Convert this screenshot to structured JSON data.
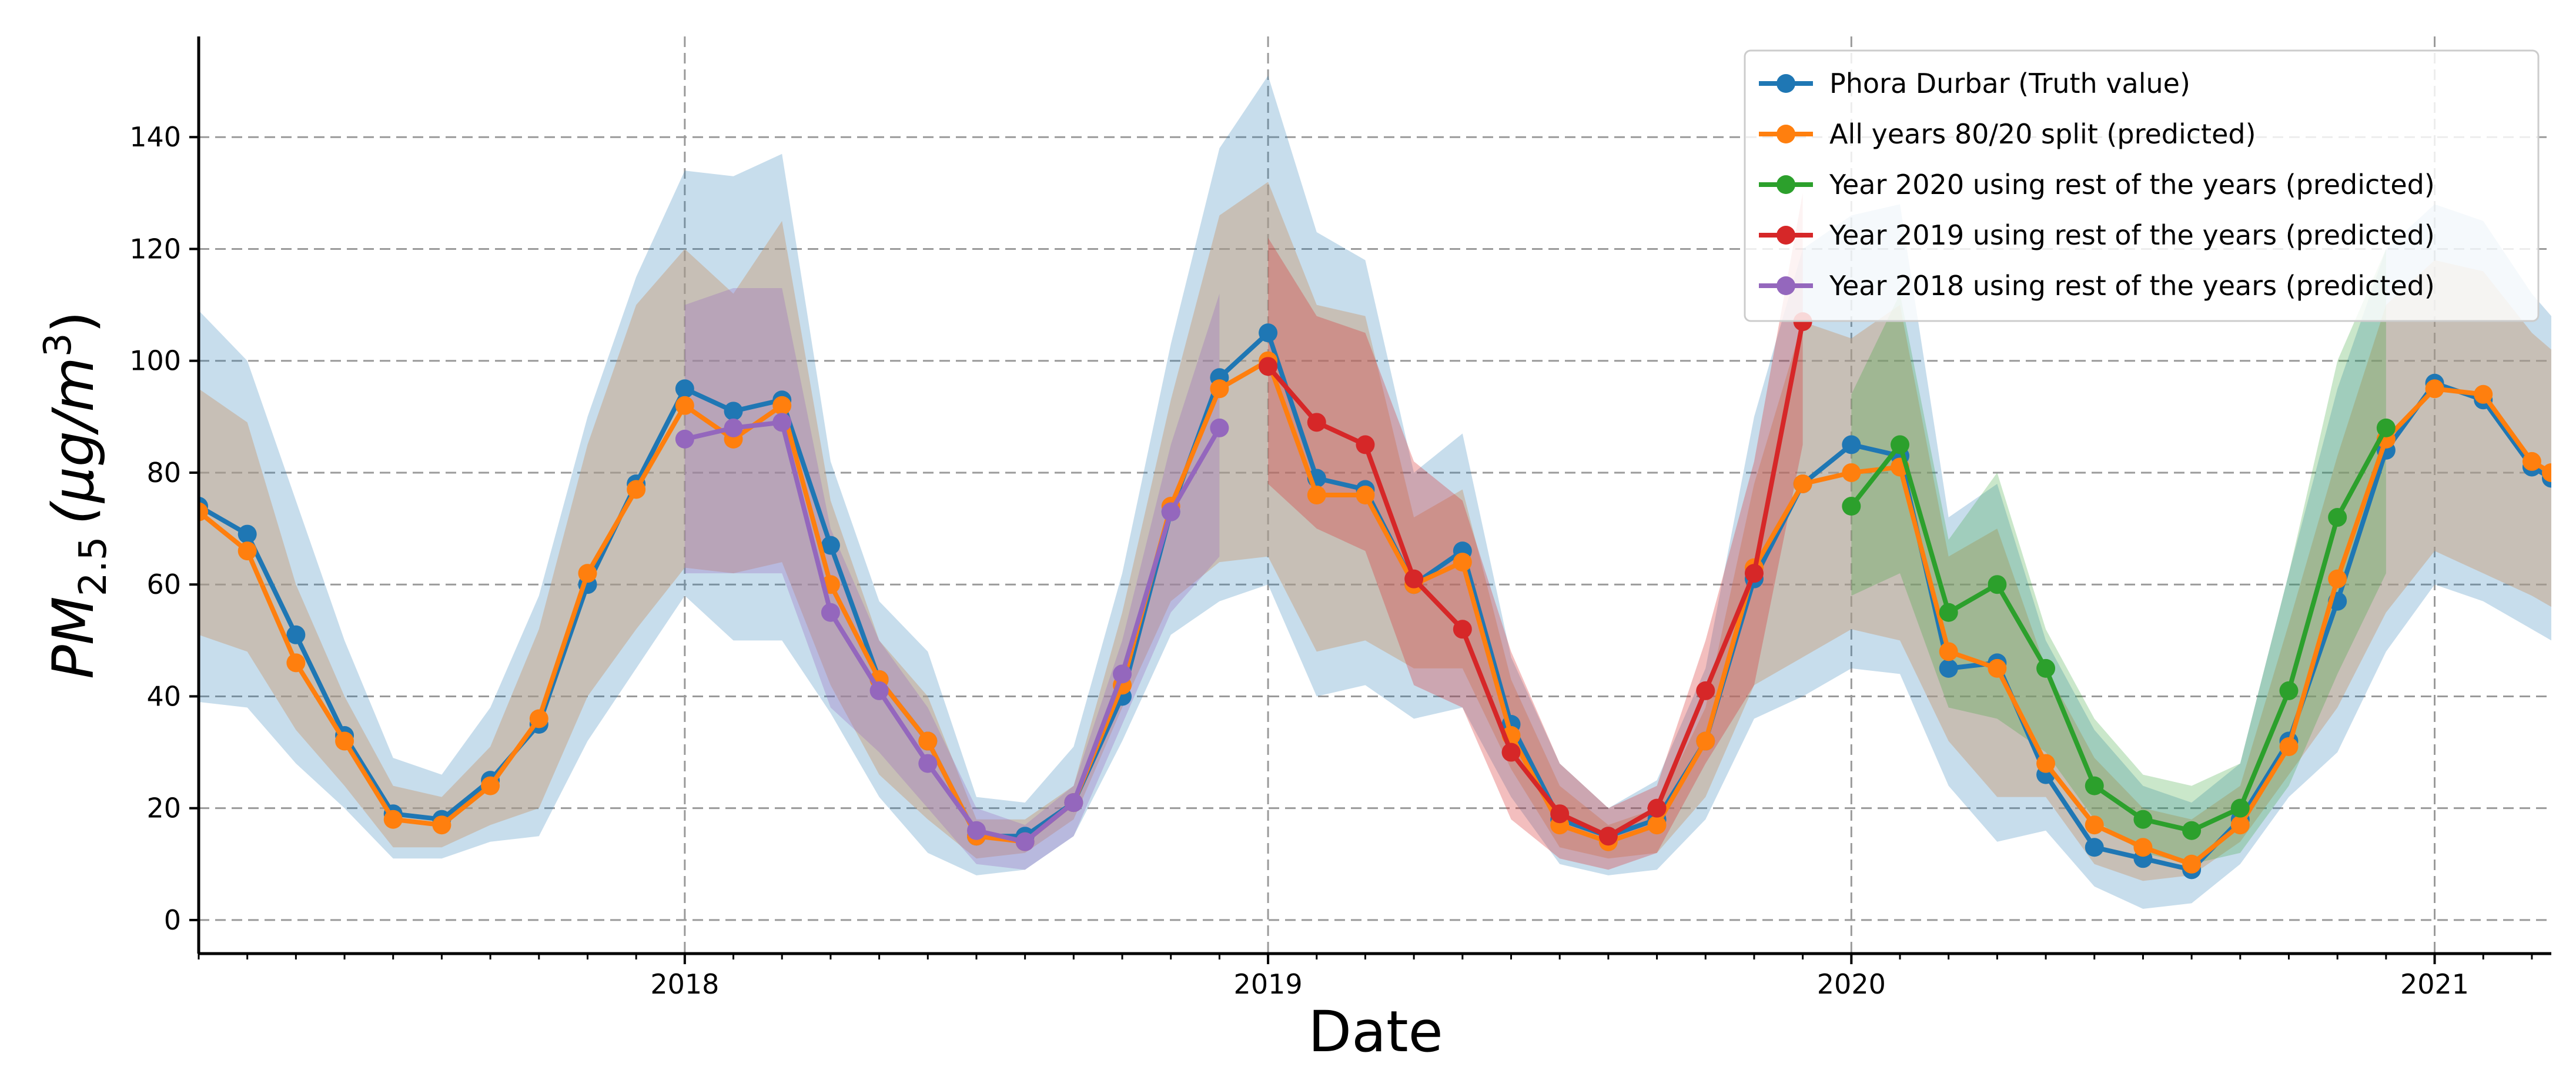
{
  "chart_data": {
    "type": "line",
    "xlabel": "Date",
    "ylabel_main": "PM",
    "ylabel_sub": "2.5",
    "ylabel_unit": "(μg/m",
    "ylabel_sup": "3",
    "ylabel_close": ")",
    "ylim": [
      -6,
      158
    ],
    "xlim": [
      0,
      48.4
    ],
    "yticks": [
      0,
      20,
      40,
      60,
      80,
      100,
      120,
      140
    ],
    "xticks": [
      {
        "label": "2018",
        "x": 10
      },
      {
        "label": "2019",
        "x": 22
      },
      {
        "label": "2020",
        "x": 34
      },
      {
        "label": "2021",
        "x": 46
      }
    ],
    "minor_x_step": 1,
    "grid": true,
    "legend_position": "top-right",
    "bands": [
      {
        "series": "Phora Durbar (Truth value)",
        "color": "#1f77b4",
        "opacity": 0.25,
        "x": [
          0,
          1,
          2,
          3,
          4,
          5,
          6,
          7,
          8,
          9,
          10,
          11,
          12,
          13,
          14,
          15,
          16,
          17,
          18,
          19,
          20,
          21,
          22,
          23,
          24,
          25,
          26,
          27,
          28,
          29,
          30,
          31,
          32,
          33,
          34,
          35,
          36,
          37,
          38,
          39,
          40,
          41,
          42,
          43,
          44,
          45,
          46,
          47,
          48,
          48.4
        ],
        "upper": [
          109,
          100,
          75,
          50,
          29,
          26,
          38,
          58,
          90,
          115,
          134,
          133,
          137,
          82,
          57,
          48,
          22,
          21,
          31,
          62,
          103,
          138,
          151,
          123,
          118,
          80,
          87,
          47,
          28,
          20,
          25,
          45,
          90,
          120,
          126,
          128,
          72,
          78,
          50,
          34,
          24,
          21,
          28,
          62,
          95,
          120,
          128,
          125,
          112,
          108
        ],
        "lower": [
          39,
          38,
          28,
          20,
          11,
          11,
          14,
          15,
          32,
          45,
          58,
          50,
          50,
          37,
          22,
          12,
          8,
          9,
          15,
          32,
          51,
          57,
          60,
          40,
          42,
          36,
          38,
          22,
          10,
          8,
          9,
          18,
          36,
          40,
          45,
          44,
          24,
          14,
          16,
          6,
          2,
          3,
          10,
          22,
          30,
          48,
          60,
          57,
          52,
          50
        ]
      },
      {
        "series": "All years 80/20 split (predicted)",
        "color": "#c8a27f",
        "opacity": 0.5,
        "x": [
          0,
          1,
          2,
          3,
          4,
          5,
          6,
          7,
          8,
          9,
          10,
          11,
          12,
          13,
          14,
          15,
          16,
          17,
          18,
          19,
          20,
          21,
          22,
          23,
          24,
          25,
          26,
          27,
          28,
          29,
          30,
          31,
          32,
          33,
          34,
          35,
          36,
          37,
          38,
          39,
          40,
          41,
          42,
          43,
          44,
          45,
          46,
          47,
          48,
          48.4
        ],
        "upper": [
          95,
          89,
          60,
          40,
          24,
          22,
          31,
          52,
          85,
          110,
          120,
          112,
          125,
          75,
          50,
          40,
          18,
          18,
          24,
          55,
          93,
          126,
          132,
          110,
          108,
          72,
          77,
          43,
          24,
          17,
          20,
          38,
          78,
          107,
          104,
          110,
          65,
          70,
          45,
          29,
          20,
          18,
          24,
          53,
          83,
          110,
          118,
          116,
          105,
          102
        ],
        "lower": [
          51,
          48,
          34,
          24,
          13,
          13,
          17,
          20,
          40,
          52,
          63,
          62,
          64,
          42,
          26,
          18,
          11,
          12,
          18,
          38,
          57,
          64,
          65,
          48,
          50,
          45,
          45,
          27,
          13,
          11,
          12,
          22,
          42,
          47,
          52,
          50,
          32,
          22,
          22,
          10,
          7,
          8,
          14,
          26,
          38,
          55,
          66,
          62,
          58,
          56
        ]
      },
      {
        "series": "Year 2020 using rest of the years (predicted)",
        "color": "#2ca02c",
        "opacity": 0.25,
        "x": [
          34,
          35,
          36,
          37,
          38,
          39,
          40,
          41,
          42,
          43,
          44,
          45
        ],
        "upper": [
          94,
          112,
          68,
          80,
          52,
          36,
          26,
          24,
          28,
          62,
          100,
          120
        ],
        "lower": [
          58,
          62,
          38,
          36,
          30,
          18,
          12,
          10,
          12,
          24,
          44,
          62
        ]
      },
      {
        "series": "Year 2019 using rest of the years (predicted)",
        "color": "#d62728",
        "opacity": 0.3,
        "x": [
          22,
          23,
          24,
          25,
          26,
          27,
          28,
          29,
          30,
          31,
          32,
          33
        ],
        "upper": [
          122,
          108,
          105,
          82,
          75,
          48,
          28,
          20,
          24,
          50,
          82,
          130
        ],
        "lower": [
          78,
          70,
          66,
          42,
          38,
          18,
          11,
          9,
          12,
          28,
          42,
          85
        ]
      },
      {
        "series": "Year 2018 using rest of the years (predicted)",
        "color": "#9467bd",
        "opacity": 0.3,
        "x": [
          10,
          11,
          12,
          13,
          14,
          15,
          16,
          17,
          18,
          19,
          20,
          21
        ],
        "upper": [
          110,
          113,
          113,
          70,
          50,
          38,
          20,
          17,
          24,
          50,
          85,
          112
        ],
        "lower": [
          62,
          62,
          62,
          38,
          30,
          20,
          10,
          9,
          15,
          35,
          55,
          65
        ]
      }
    ],
    "series": [
      {
        "name": "Phora Durbar (Truth value)",
        "color": "#1f77b4",
        "x": [
          0,
          1,
          2,
          3,
          4,
          5,
          6,
          7,
          8,
          9,
          10,
          11,
          12,
          13,
          14,
          15,
          16,
          17,
          18,
          19,
          20,
          21,
          22,
          23,
          24,
          25,
          26,
          27,
          28,
          29,
          30,
          31,
          32,
          33,
          34,
          35,
          36,
          37,
          38,
          39,
          40,
          41,
          42,
          43,
          44,
          45,
          46,
          47,
          48,
          48.4
        ],
        "y": [
          74,
          69,
          51,
          33,
          19,
          18,
          25,
          35,
          60,
          78,
          95,
          91,
          93,
          67,
          43,
          32,
          15,
          15,
          21,
          40,
          73,
          97,
          105,
          79,
          77,
          60,
          66,
          35,
          18,
          15,
          18,
          32,
          61,
          78,
          85,
          83,
          45,
          46,
          26,
          13,
          11,
          9,
          18,
          32,
          57,
          84,
          96,
          93,
          81,
          79
        ]
      },
      {
        "name": "All years 80/20 split (predicted)",
        "color": "#ff7f0e",
        "x": [
          0,
          1,
          2,
          3,
          4,
          5,
          6,
          7,
          8,
          9,
          10,
          11,
          12,
          13,
          14,
          15,
          16,
          17,
          18,
          19,
          20,
          21,
          22,
          23,
          24,
          25,
          26,
          27,
          28,
          29,
          30,
          31,
          32,
          33,
          34,
          35,
          36,
          37,
          38,
          39,
          40,
          41,
          42,
          43,
          44,
          45,
          46,
          47,
          48,
          48.4
        ],
        "y": [
          73,
          66,
          46,
          32,
          18,
          17,
          24,
          36,
          62,
          77,
          92,
          86,
          92,
          60,
          43,
          32,
          15,
          14,
          21,
          42,
          74,
          95,
          100,
          76,
          76,
          60,
          64,
          33,
          17,
          14,
          17,
          32,
          63,
          78,
          80,
          81,
          48,
          45,
          28,
          17,
          13,
          10,
          17,
          31,
          61,
          86,
          95,
          94,
          82,
          80
        ]
      },
      {
        "name": "Year 2020 using rest of the years (predicted)",
        "color": "#2ca02c",
        "x": [
          34,
          35,
          36,
          37,
          38,
          39,
          40,
          41,
          42,
          43,
          44,
          45
        ],
        "y": [
          74,
          85,
          55,
          60,
          45,
          24,
          18,
          16,
          20,
          41,
          72,
          88
        ]
      },
      {
        "name": "Year 2019 using rest of the years (predicted)",
        "color": "#d62728",
        "x": [
          22,
          23,
          24,
          25,
          26,
          27,
          28,
          29,
          30,
          31,
          32,
          33
        ],
        "y": [
          99,
          89,
          85,
          61,
          52,
          30,
          19,
          15,
          20,
          41,
          62,
          107
        ]
      },
      {
        "name": "Year 2018 using rest of the years (predicted)",
        "color": "#9467bd",
        "x": [
          10,
          11,
          12,
          13,
          14,
          15,
          16,
          17,
          18,
          19,
          20,
          21
        ],
        "y": [
          86,
          88,
          89,
          55,
          41,
          28,
          16,
          14,
          21,
          44,
          73,
          88
        ]
      }
    ],
    "legend": [
      {
        "label": "Phora Durbar (Truth value)",
        "color": "#1f77b4"
      },
      {
        "label": "All years 80/20 split (predicted)",
        "color": "#ff7f0e"
      },
      {
        "label": "Year 2020 using rest of the years (predicted)",
        "color": "#2ca02c"
      },
      {
        "label": "Year 2019 using rest of the years (predicted)",
        "color": "#d62728"
      },
      {
        "label": "Year 2018 using rest of the years (predicted)",
        "color": "#9467bd"
      }
    ]
  }
}
